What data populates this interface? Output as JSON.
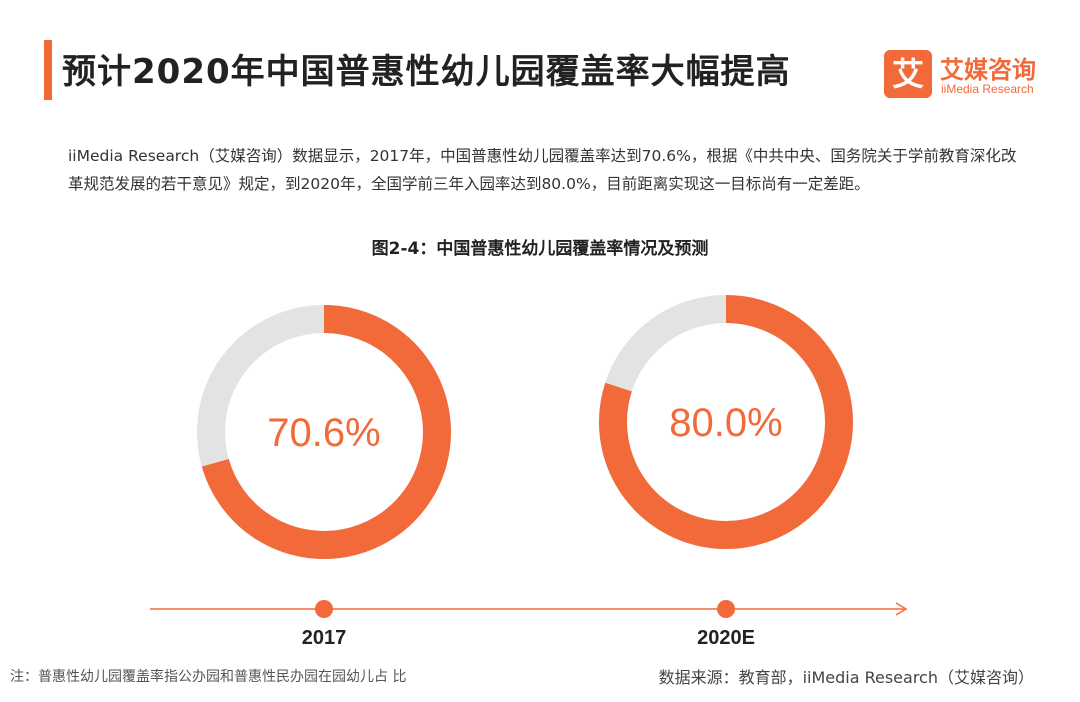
{
  "header": {
    "title": "预计2020年中国普惠性幼儿园覆盖率大幅提高",
    "logo_mark": "艾",
    "logo_cn": "艾媒咨询",
    "logo_en": "iiMedia Research"
  },
  "description": "iiMedia Research（艾媒咨询）数据显示，2017年，中国普惠性幼儿园覆盖率达到70.6%，根据《中共中央、国务院关于学前教育深化改革规范发展的若干意见》规定，到2020年，全国学前三年入园率达到80.0%，目前距离实现这一目标尚有一定差距。",
  "chart_data": {
    "type": "pie",
    "title": "图2-4：中国普惠性幼儿园覆盖率情况及预测",
    "categories": [
      "2017",
      "2020E"
    ],
    "values": [
      70.6,
      80.0
    ],
    "value_labels": [
      "70.6%",
      "80.0%"
    ],
    "max": 100,
    "style": "donut",
    "colors": {
      "value": "#f26a3a",
      "remainder": "#e3e3e3",
      "timeline": "#f26a3a"
    }
  },
  "footer": {
    "note": "注：普惠性幼儿园覆盖率指公办园和普惠性民办园在园幼儿占 比",
    "source": "数据来源：教育部，iiMedia Research（艾媒咨询）"
  }
}
